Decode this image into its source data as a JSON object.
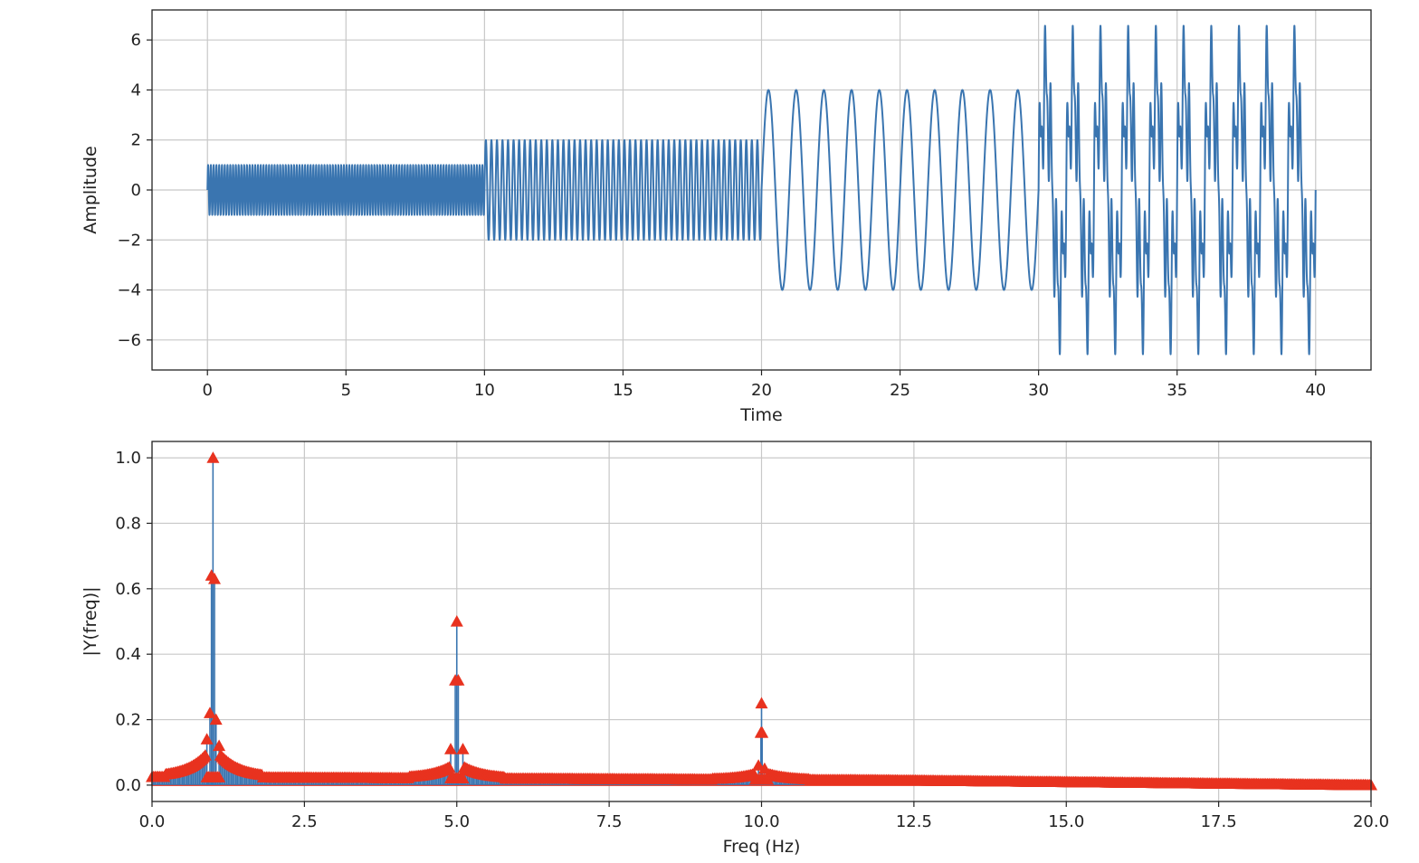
{
  "figure": {
    "background": "#ffffff",
    "colors": {
      "line": "#3a75b0",
      "stem": "#3a75b0",
      "marker": "#e8321f",
      "grid": "#c8c8c8",
      "spine": "#222222"
    }
  },
  "chart_data": [
    {
      "type": "line",
      "xlabel": "Time",
      "ylabel": "Amplitude",
      "xlim": [
        -2,
        42
      ],
      "ylim": [
        -7.2,
        7.2
      ],
      "grid": true,
      "xticks": [
        0,
        5,
        10,
        15,
        20,
        25,
        30,
        35,
        40
      ],
      "xtick_labels": [
        "0",
        "5",
        "10",
        "15",
        "20",
        "25",
        "30",
        "35",
        "40"
      ],
      "yticks": [
        -6,
        -4,
        -2,
        0,
        2,
        4,
        6
      ],
      "ytick_labels": [
        "−6",
        "−4",
        "−2",
        "0",
        "2",
        "4",
        "6"
      ],
      "series": [
        {
          "segments": [
            {
              "t0": 0,
              "t1": 10,
              "components": [
                {
                  "amplitude": 1,
                  "frequency": 10
                }
              ]
            },
            {
              "t0": 10,
              "t1": 20,
              "components": [
                {
                  "amplitude": 2,
                  "frequency": 5
                }
              ]
            },
            {
              "t0": 20,
              "t1": 30,
              "components": [
                {
                  "amplitude": 4,
                  "frequency": 1
                }
              ]
            },
            {
              "t0": 30,
              "t1": 40,
              "components": [
                {
                  "amplitude": 1,
                  "frequency": 10
                },
                {
                  "amplitude": 2,
                  "frequency": 5
                },
                {
                  "amplitude": 4,
                  "frequency": 1
                }
              ]
            }
          ]
        }
      ]
    },
    {
      "type": "stem",
      "xlabel": "Freq (Hz)",
      "ylabel": "|Y(freq)|",
      "xlim": [
        0,
        20
      ],
      "ylim": [
        -0.05,
        1.05
      ],
      "grid": true,
      "marker": "triangle-up",
      "xticks": [
        0,
        2.5,
        5,
        7.5,
        10,
        12.5,
        15,
        17.5,
        20
      ],
      "xtick_labels": [
        "0.0",
        "2.5",
        "5.0",
        "7.5",
        "10.0",
        "12.5",
        "15.0",
        "17.5",
        "20.0"
      ],
      "yticks": [
        0,
        0.2,
        0.4,
        0.6,
        0.8,
        1.0
      ],
      "ytick_labels": [
        "0.0",
        "0.2",
        "0.4",
        "0.6",
        "0.8",
        "1.0"
      ],
      "peaks": [
        {
          "x": 1.0,
          "y": 1.0
        },
        {
          "x": 0.975,
          "y": 0.64
        },
        {
          "x": 1.025,
          "y": 0.63
        },
        {
          "x": 0.95,
          "y": 0.22
        },
        {
          "x": 1.05,
          "y": 0.2
        },
        {
          "x": 0.9,
          "y": 0.14
        },
        {
          "x": 1.1,
          "y": 0.12
        },
        {
          "x": 5.0,
          "y": 0.5
        },
        {
          "x": 4.975,
          "y": 0.32
        },
        {
          "x": 5.025,
          "y": 0.32
        },
        {
          "x": 4.9,
          "y": 0.11
        },
        {
          "x": 5.1,
          "y": 0.11
        },
        {
          "x": 10.0,
          "y": 0.25
        },
        {
          "x": 9.99,
          "y": 0.16
        },
        {
          "x": 10.01,
          "y": 0.16
        },
        {
          "x": 9.95,
          "y": 0.06
        },
        {
          "x": 10.05,
          "y": 0.05
        }
      ],
      "noise_floor": {
        "x": [
          0,
          12,
          20
        ],
        "y": [
          0.025,
          0.015,
          0.0
        ]
      }
    }
  ]
}
